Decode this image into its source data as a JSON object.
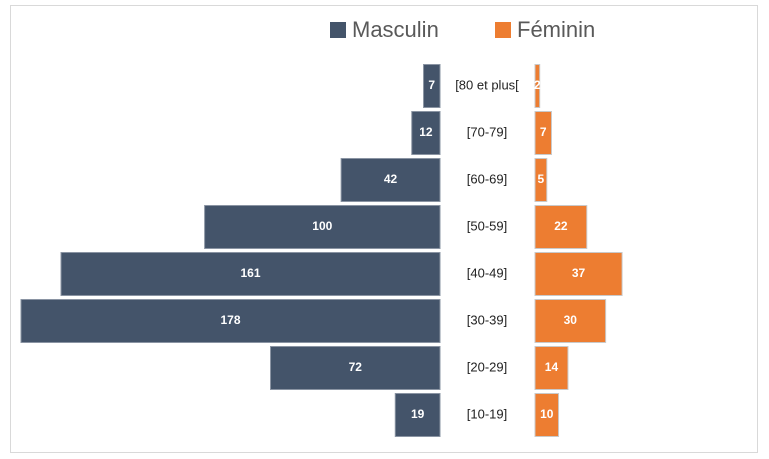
{
  "chart_data": {
    "type": "bar",
    "orientation": "horizontal-diverging",
    "categories": [
      "[80 et plus[",
      "[70-79]",
      "[60-69]",
      "[50-59]",
      "[40-49]",
      "[30-39]",
      "[20-29]",
      "[10-19]"
    ],
    "series": [
      {
        "name": "Masculin",
        "color": "#44546a",
        "values": [
          7,
          12,
          42,
          100,
          161,
          178,
          72,
          19
        ]
      },
      {
        "name": "Féminin",
        "color": "#ed7d31",
        "values": [
          2,
          7,
          5,
          22,
          37,
          30,
          14,
          10
        ]
      }
    ],
    "legend": "top"
  }
}
